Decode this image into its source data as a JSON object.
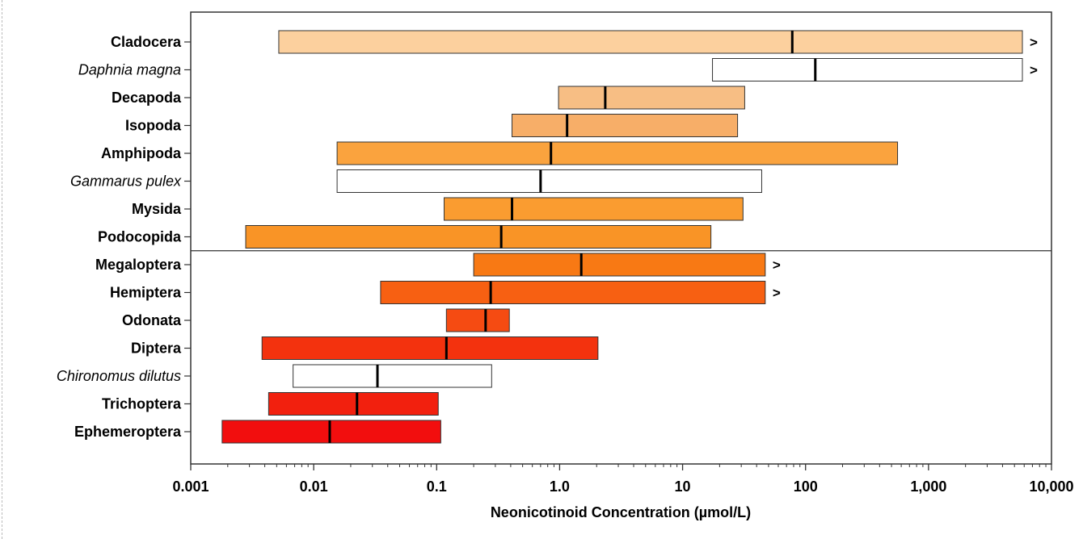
{
  "chart_data": {
    "type": "bar",
    "orientation": "horizontal-range",
    "xscale": "log",
    "xlabel": "Neonicotinoid Concentration (µmol/L)",
    "xlim": [
      0.001,
      10000
    ],
    "xticks": [
      {
        "value": 0.001,
        "label": "0.001"
      },
      {
        "value": 0.01,
        "label": "0.01"
      },
      {
        "value": 0.1,
        "label": "0.1"
      },
      {
        "value": 1,
        "label": "1.0"
      },
      {
        "value": 10,
        "label": "10"
      },
      {
        "value": 100,
        "label": "100"
      },
      {
        "value": 1000,
        "label": "1,000"
      },
      {
        "value": 10000,
        "label": "10,000"
      }
    ],
    "separator_after_index": 7,
    "open_marker": ">",
    "categories": [
      {
        "label": "Cladocera",
        "italic": false,
        "min": 0.0052,
        "median": 78,
        "max": 5800,
        "color": "#FCD09E",
        "open_ended": true
      },
      {
        "label": "Daphnia magna",
        "italic": true,
        "min": 17.5,
        "median": 120,
        "max": 5800,
        "color": "#FFFFFF",
        "open_ended": true
      },
      {
        "label": "Decapoda",
        "italic": false,
        "min": 0.98,
        "median": 2.35,
        "max": 32,
        "color": "#F7BE84",
        "open_ended": false
      },
      {
        "label": "Isopoda",
        "italic": false,
        "min": 0.41,
        "median": 1.15,
        "max": 28,
        "color": "#F7AE68",
        "open_ended": false
      },
      {
        "label": "Amphipoda",
        "italic": false,
        "min": 0.0155,
        "median": 0.85,
        "max": 560,
        "color": "#FAA33E",
        "open_ended": false
      },
      {
        "label": "Gammarus pulex",
        "italic": true,
        "min": 0.0155,
        "median": 0.7,
        "max": 44,
        "color": "#FFFFFF",
        "open_ended": false
      },
      {
        "label": "Mysida",
        "italic": false,
        "min": 0.115,
        "median": 0.41,
        "max": 31,
        "color": "#FA9C30",
        "open_ended": false
      },
      {
        "label": "Podocopida",
        "italic": false,
        "min": 0.0028,
        "median": 0.335,
        "max": 17,
        "color": "#F99426",
        "open_ended": false
      },
      {
        "label": "Megaloptera",
        "italic": false,
        "min": 0.2,
        "median": 1.5,
        "max": 47,
        "color": "#F87914",
        "open_ended": true
      },
      {
        "label": "Hemiptera",
        "italic": false,
        "min": 0.035,
        "median": 0.275,
        "max": 47,
        "color": "#F76012",
        "open_ended": true
      },
      {
        "label": "Odonata",
        "italic": false,
        "min": 0.12,
        "median": 0.25,
        "max": 0.39,
        "color": "#F54B12",
        "open_ended": false
      },
      {
        "label": "Diptera",
        "italic": false,
        "min": 0.0038,
        "median": 0.12,
        "max": 2.05,
        "color": "#F3320E",
        "open_ended": false
      },
      {
        "label": "Chironomus dilutus",
        "italic": true,
        "min": 0.0068,
        "median": 0.033,
        "max": 0.28,
        "color": "#FFFFFF",
        "open_ended": false
      },
      {
        "label": "Trichoptera",
        "italic": false,
        "min": 0.0043,
        "median": 0.0225,
        "max": 0.103,
        "color": "#F2200E",
        "open_ended": false
      },
      {
        "label": "Ephemeroptera",
        "italic": false,
        "min": 0.0018,
        "median": 0.0135,
        "max": 0.108,
        "color": "#F20E0E",
        "open_ended": false
      }
    ]
  }
}
